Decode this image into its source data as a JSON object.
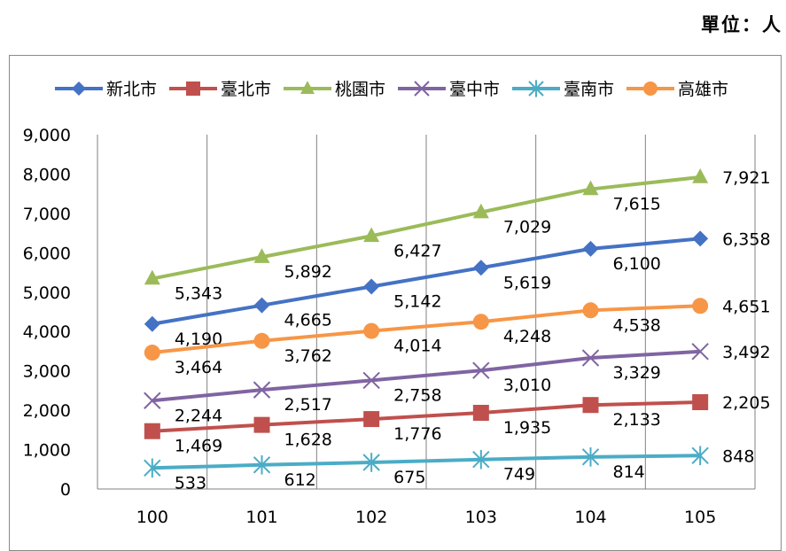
{
  "unit_label": "單位：人",
  "chart_data": {
    "type": "line",
    "title": "",
    "xlabel": "",
    "ylabel": "",
    "categories": [
      "100",
      "101",
      "102",
      "103",
      "104",
      "105"
    ],
    "ylim": [
      0,
      9000
    ],
    "yticks": [
      "0",
      "1,000",
      "2,000",
      "3,000",
      "4,000",
      "5,000",
      "6,000",
      "7,000",
      "8,000",
      "9,000"
    ],
    "grid": "vertical",
    "legend_position": "top",
    "series": [
      {
        "name": "新北市",
        "color": "#4472c4",
        "marker": "diamond",
        "values": [
          4190,
          4665,
          5142,
          5619,
          6100,
          6358
        ],
        "labels": [
          "4,190",
          "4,665",
          "5,142",
          "5,619",
          "6,100",
          "6,358"
        ]
      },
      {
        "name": "臺北市",
        "color": "#c0504d",
        "marker": "square",
        "values": [
          1469,
          1628,
          1776,
          1935,
          2133,
          2205
        ],
        "labels": [
          "1,469",
          "1,628",
          "1,776",
          "1,935",
          "2,133",
          "2,205"
        ]
      },
      {
        "name": "桃園市",
        "color": "#9bbb59",
        "marker": "triangle",
        "values": [
          5343,
          5892,
          6427,
          7029,
          7615,
          7921
        ],
        "labels": [
          "5,343",
          "5,892",
          "6,427",
          "7,029",
          "7,615",
          "7,921"
        ]
      },
      {
        "name": "臺中市",
        "color": "#8064a2",
        "marker": "x",
        "values": [
          2244,
          2517,
          2758,
          3010,
          3329,
          3492
        ],
        "labels": [
          "2,244",
          "2,517",
          "2,758",
          "3,010",
          "3,329",
          "3,492"
        ]
      },
      {
        "name": "臺南市",
        "color": "#4bacc6",
        "marker": "star",
        "values": [
          533,
          612,
          675,
          749,
          814,
          848
        ],
        "labels": [
          "533",
          "612",
          "675",
          "749",
          "814",
          "848"
        ]
      },
      {
        "name": "高雄市",
        "color": "#f79646",
        "marker": "circle",
        "values": [
          3464,
          3762,
          4014,
          4248,
          4538,
          4651
        ],
        "labels": [
          "3,464",
          "3,762",
          "4,014",
          "4,248",
          "4,538",
          "4,651"
        ]
      }
    ]
  }
}
